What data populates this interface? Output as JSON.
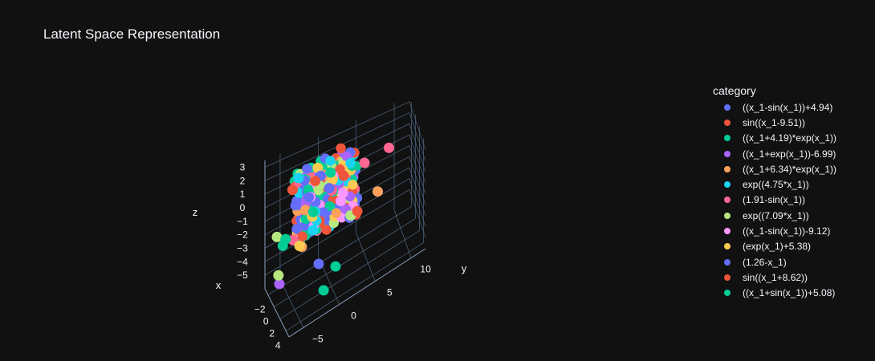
{
  "chart_data": {
    "type": "scatter",
    "title": "Latent Space Representation",
    "xlabel": "x",
    "ylabel": "y",
    "zlabel": "z",
    "x_ticks": [
      "−2",
      "0",
      "2",
      "4"
    ],
    "y_ticks": [
      "−5",
      "0",
      "5",
      "10"
    ],
    "z_ticks": [
      "3",
      "2",
      "1",
      "0",
      "−1",
      "−2",
      "−3",
      "−4",
      "−5"
    ],
    "xlim": [
      -3,
      5
    ],
    "ylim": [
      -7,
      12
    ],
    "zlim": [
      -6,
      3.5
    ],
    "grid": true,
    "legend_title": "category",
    "legend_position": "right",
    "series": [
      {
        "name": "((x_1-sin(x_1))+4.94)",
        "color": "#636efa",
        "points": [
          [
            0.2,
            -1.5,
            0.3
          ],
          [
            -0.1,
            -2.5,
            1.2
          ],
          [
            2.2,
            -1.8,
            -3.5
          ],
          [
            0.5,
            0.5,
            2.0
          ]
        ]
      },
      {
        "name": "sin((x_1-9.51))",
        "color": "#ef553b",
        "points": [
          [
            0.0,
            -4.5,
            2.0
          ],
          [
            0.6,
            3.8,
            -2.2
          ],
          [
            0.3,
            1.5,
            0.8
          ],
          [
            -0.4,
            -0.5,
            1.6
          ]
        ]
      },
      {
        "name": "((x_1+4.19)*exp(x_1))",
        "color": "#00cc96",
        "points": [
          [
            -0.8,
            -5.5,
            -2.3
          ],
          [
            3.2,
            -1.5,
            -5.2
          ],
          [
            0.4,
            -2.5,
            1.5
          ],
          [
            -0.2,
            1.0,
            0.2
          ]
        ]
      },
      {
        "name": "((x_1+exp(x_1))-6.99)",
        "color": "#ab63fa",
        "points": [
          [
            1.8,
            -7.0,
            -3.5
          ],
          [
            0.2,
            -1.0,
            2.2
          ],
          [
            -0.3,
            1.8,
            0.5
          ],
          [
            0.5,
            -2.8,
            1.0
          ]
        ]
      },
      {
        "name": "((x_1+6.34)*exp(x_1))",
        "color": "#ffa15a",
        "points": [
          [
            0.9,
            -3.6,
            -2.2
          ],
          [
            -0.2,
            0.0,
            1.8
          ],
          [
            0.6,
            -3.0,
            0.3
          ],
          [
            3.0,
            6.0,
            0.2
          ]
        ]
      },
      {
        "name": "exp((4.75*x_1))",
        "color": "#19d3f3",
        "points": [
          [
            0.7,
            -2.0,
            -1.5
          ],
          [
            -0.5,
            -3.5,
            2.4
          ],
          [
            0.1,
            -1.5,
            -0.5
          ],
          [
            0.3,
            1.5,
            1.2
          ]
        ]
      },
      {
        "name": "(1.91-sin(x_1))",
        "color": "#ff6692",
        "points": [
          [
            -0.2,
            8.5,
            1.5
          ],
          [
            0.4,
            -4.6,
            -1.6
          ],
          [
            -0.1,
            5.2,
            1.3
          ],
          [
            0.8,
            0.5,
            0.9
          ]
        ]
      },
      {
        "name": "exp((7.09*x_1))",
        "color": "#b6e880",
        "points": [
          [
            -1.5,
            -6.0,
            -1.8
          ],
          [
            1.5,
            -7.0,
            -3.0
          ],
          [
            1.5,
            2.8,
            -1.5
          ],
          [
            0.3,
            -1.0,
            1.5
          ]
        ]
      },
      {
        "name": "((x_1-sin(x_1))-9.12)",
        "color": "#ff97ff",
        "points": [
          [
            0.5,
            1.8,
            -0.5
          ],
          [
            0.2,
            2.2,
            -0.1
          ],
          [
            -0.3,
            -2.0,
            0.6
          ],
          [
            0.4,
            0.8,
            1.8
          ]
        ]
      },
      {
        "name": "(exp(x_1)+5.38)",
        "color": "#fecb52",
        "points": [
          [
            0.6,
            -3.8,
            -2.2
          ],
          [
            -0.3,
            -1.0,
            2.6
          ],
          [
            0.2,
            0.8,
            1.4
          ],
          [
            0.9,
            -2.2,
            -0.3
          ]
        ]
      },
      {
        "name": "(1.26-x_1)",
        "color": "#636efa",
        "points": [
          [
            0.5,
            -2.5,
            1.1
          ],
          [
            -0.2,
            0.5,
            0.6
          ],
          [
            0.8,
            -1.0,
            2.5
          ]
        ]
      },
      {
        "name": "sin((x_1+8.62))",
        "color": "#ef553b",
        "points": [
          [
            0.6,
            4.0,
            -2.0
          ],
          [
            0.1,
            -1.5,
            1.9
          ],
          [
            -0.4,
            2.5,
            0.9
          ]
        ]
      },
      {
        "name": "((x_1+sin(x_1))+5.08)",
        "color": "#00cc96",
        "points": [
          [
            0.2,
            -1.8,
            -0.4
          ],
          [
            -0.6,
            -5.2,
            -1.8
          ],
          [
            0.3,
            0.5,
            2.1
          ],
          [
            2.2,
            0.5,
            -4.5
          ]
        ]
      }
    ],
    "cluster_fill": [
      {
        "n": 300,
        "x_range": [
          -1,
          1
        ],
        "y_range": [
          -4,
          4
        ],
        "z_range": [
          -2,
          3
        ]
      }
    ]
  }
}
